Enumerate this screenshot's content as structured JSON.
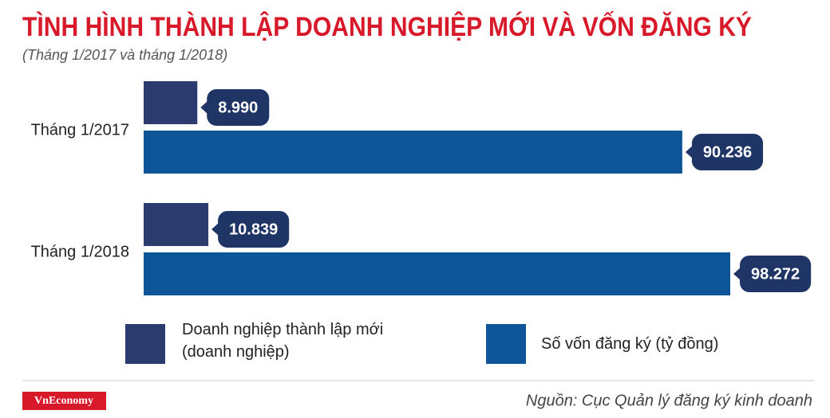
{
  "chart_data": {
    "type": "bar",
    "title": "TÌNH HÌNH THÀNH LẬP DOANH NGHIỆP MỚI VÀ VỐN ĐĂNG KÝ",
    "subtitle": "(Tháng 1/2017 và tháng 1/2018)",
    "categories": [
      "Tháng 1/2017",
      "Tháng 1/2018"
    ],
    "series": [
      {
        "name": "Doanh nghiệp thành lập mới (doanh nghiệp)",
        "color": "#2c3b6e",
        "values": [
          8990,
          10839
        ],
        "value_labels": [
          "8.990",
          "10.839"
        ]
      },
      {
        "name": "Số vốn đăng ký (tỷ đồng)",
        "color": "#0d5597",
        "values": [
          90236,
          98272
        ],
        "value_labels": [
          "90.236",
          "98.272"
        ]
      }
    ],
    "label_color": "#1e3565",
    "logo": "VnEconomy",
    "source": "Nguồn: Cục Quản lý đăng ký kinh doanh"
  }
}
